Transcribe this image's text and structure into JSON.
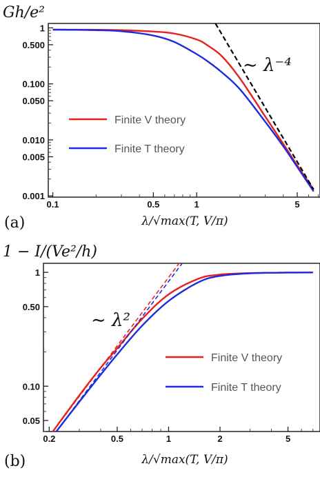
{
  "chart_data": [
    {
      "panel": "(a)",
      "type": "line",
      "y_title": "Gh/e²",
      "xlabel": "λ/√max(T, V/π)",
      "x_scale": "log",
      "y_scale": "log",
      "xlim": [
        0.093,
        7.2
      ],
      "ylim": [
        0.00095,
        1.2
      ],
      "xticks": [
        0.1,
        0.5,
        1,
        5
      ],
      "xtick_labels": [
        "0.1",
        "0.5",
        "1",
        "5"
      ],
      "yticks": [
        0.001,
        0.005,
        0.01,
        0.05,
        0.1,
        0.5,
        1
      ],
      "ytick_labels": [
        "0.001",
        "0.005",
        "0.010",
        "0.050",
        "0.100",
        "0.500",
        "1"
      ],
      "annotation": "∼ λ⁻⁴",
      "legend_position": "center-left",
      "colors": {
        "finite_v": "#e8211c",
        "finite_t": "#1c2ae0",
        "asymptote": "#000000"
      },
      "series": [
        {
          "name": "Finite V theory",
          "color": "#e8211c",
          "style": "solid",
          "x": [
            0.1,
            0.2,
            0.3,
            0.5,
            0.7,
            1.0,
            1.2,
            1.5,
            2.0,
            3.0,
            4.0,
            5.0,
            6.5
          ],
          "y": [
            0.93,
            0.925,
            0.91,
            0.86,
            0.79,
            0.62,
            0.48,
            0.31,
            0.125,
            0.026,
            0.0085,
            0.0035,
            0.0013
          ]
        },
        {
          "name": "Finite T theory",
          "color": "#1c2ae0",
          "style": "solid",
          "x": [
            0.1,
            0.2,
            0.3,
            0.5,
            0.7,
            1.0,
            1.2,
            1.5,
            2.0,
            3.0,
            4.0,
            5.0,
            6.5
          ],
          "y": [
            0.93,
            0.91,
            0.87,
            0.73,
            0.56,
            0.34,
            0.25,
            0.16,
            0.08,
            0.021,
            0.0077,
            0.0033,
            0.0012
          ]
        },
        {
          "name": "",
          "color": "#000000",
          "style": "dashed",
          "x": [
            1.35,
            6.5
          ],
          "y": [
            1.2,
            0.0013
          ]
        }
      ]
    },
    {
      "panel": "(b)",
      "type": "line",
      "y_title": "1 − I/(Ve²/h)",
      "xlabel": "λ/√max(T, V/π)",
      "x_scale": "log",
      "y_scale": "log",
      "xlim": [
        0.185,
        7.7
      ],
      "ylim": [
        0.04,
        1.2
      ],
      "xticks": [
        0.2,
        0.5,
        1,
        2,
        5
      ],
      "xtick_labels": [
        "0.2",
        "0.5",
        "1",
        "2",
        "5"
      ],
      "yticks": [
        0.05,
        0.1,
        0.5,
        1
      ],
      "ytick_labels": [
        "0.05",
        "0.10",
        "0.50",
        "1"
      ],
      "annotation": "∼ λ²",
      "legend_position": "center-right",
      "colors": {
        "finite_v": "#e8211c",
        "finite_t": "#1c2ae0"
      },
      "series": [
        {
          "name": "Finite V theory",
          "color": "#e8211c",
          "style": "solid",
          "x": [
            0.21,
            0.3,
            0.4,
            0.5,
            0.7,
            1.0,
            1.5,
            2.0,
            3.0,
            5.0,
            7.0
          ],
          "y": [
            0.04,
            0.083,
            0.145,
            0.215,
            0.39,
            0.64,
            0.88,
            0.955,
            0.985,
            0.995,
            0.997
          ]
        },
        {
          "name": "Finite T theory",
          "color": "#1c2ae0",
          "style": "solid",
          "x": [
            0.22,
            0.3,
            0.4,
            0.5,
            0.7,
            1.0,
            1.5,
            2.0,
            3.0,
            5.0,
            7.0
          ],
          "y": [
            0.04,
            0.073,
            0.126,
            0.19,
            0.34,
            0.56,
            0.82,
            0.93,
            0.98,
            0.995,
            0.997
          ]
        },
        {
          "name": "",
          "color": "#e8211c",
          "style": "dashed",
          "x": [
            0.21,
            1.2
          ],
          "y": [
            0.04,
            1.3
          ]
        },
        {
          "name": "",
          "color": "#1c2ae0",
          "style": "dashed",
          "x": [
            0.22,
            1.25
          ],
          "y": [
            0.04,
            1.3
          ]
        }
      ]
    }
  ]
}
